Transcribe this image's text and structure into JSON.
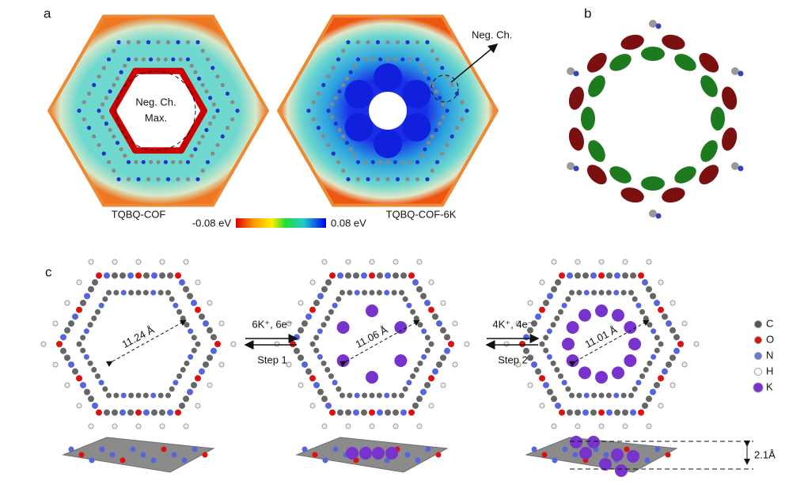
{
  "panel_a": {
    "label": "a",
    "left": {
      "caption": "TQBQ-COF",
      "annotation": [
        "Neg. Ch.",
        "Max."
      ]
    },
    "right": {
      "caption": "TQBQ-COF-6K",
      "annotation": "Neg. Ch."
    },
    "colorbar": {
      "min_label": "-0.08 eV",
      "max_label": "0.08 eV"
    }
  },
  "panel_b": {
    "label": "b"
  },
  "panel_c": {
    "label": "c",
    "structures": [
      {
        "distance": "11.24 Å"
      },
      {
        "distance": "11.06 Å"
      },
      {
        "distance": "11.01 Å"
      }
    ],
    "steps": [
      {
        "reagents": "6K⁺, 6e⁻",
        "name": "Step 1"
      },
      {
        "reagents": "4K⁺, 4e⁻",
        "name": "Step 2"
      }
    ],
    "legend": [
      "C",
      "O",
      "N",
      "H",
      "K"
    ],
    "interlayer_distance": "2.1Å"
  }
}
